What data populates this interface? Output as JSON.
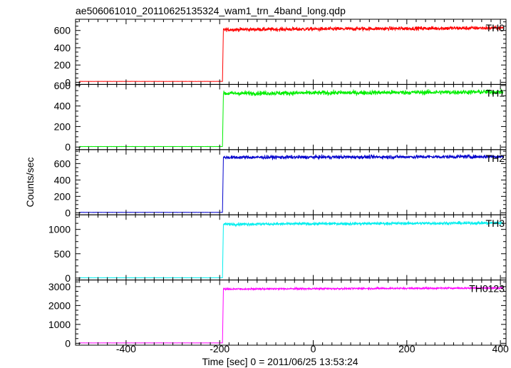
{
  "chart_data": {
    "type": "line",
    "title": "ae506061010_20110625135324_wam1_trn_4band_long.qdp",
    "xlabel": "Time [sec] 0 = 2011/06/25 13:53:24",
    "ylabel": "Counts/sec",
    "xlim": [
      -508,
      412
    ],
    "x_ticks": [
      -400,
      -200,
      0,
      200,
      400
    ],
    "grid": false,
    "step_time": -193,
    "series": [
      {
        "name": "TH0",
        "color": "#ff0000",
        "pre_level": 10,
        "post_level": 620,
        "rise_to": 620,
        "noise": 22,
        "trend": 20,
        "ylim": [
          -25,
          730
        ],
        "y_ticks": [
          0,
          200,
          400,
          600
        ]
      },
      {
        "name": "TH1",
        "color": "#00ee00",
        "pre_level": 5,
        "post_level": 530,
        "rise_to": 510,
        "noise": 22,
        "trend": 15,
        "ylim": [
          -25,
          610
        ],
        "y_ticks": [
          0,
          200,
          400,
          600
        ]
      },
      {
        "name": "TH2",
        "color": "#0000cc",
        "pre_level": 5,
        "post_level": 680,
        "rise_to": 670,
        "noise": 22,
        "trend": 10,
        "ylim": [
          -25,
          770
        ],
        "y_ticks": [
          0,
          200,
          400,
          600
        ]
      },
      {
        "name": "TH3",
        "color": "#00eeee",
        "pre_level": 5,
        "post_level": 1120,
        "rise_to": 1090,
        "noise": 30,
        "trend": 25,
        "ylim": [
          -40,
          1300
        ],
        "y_ticks": [
          0,
          500,
          1000
        ]
      },
      {
        "name": "TH0123",
        "color": "#ff00ff",
        "pre_level": 20,
        "post_level": 2900,
        "rise_to": 2850,
        "noise": 45,
        "trend": 60,
        "ylim": [
          -100,
          3350
        ],
        "y_ticks": [
          0,
          1000,
          2000,
          3000
        ]
      }
    ]
  }
}
